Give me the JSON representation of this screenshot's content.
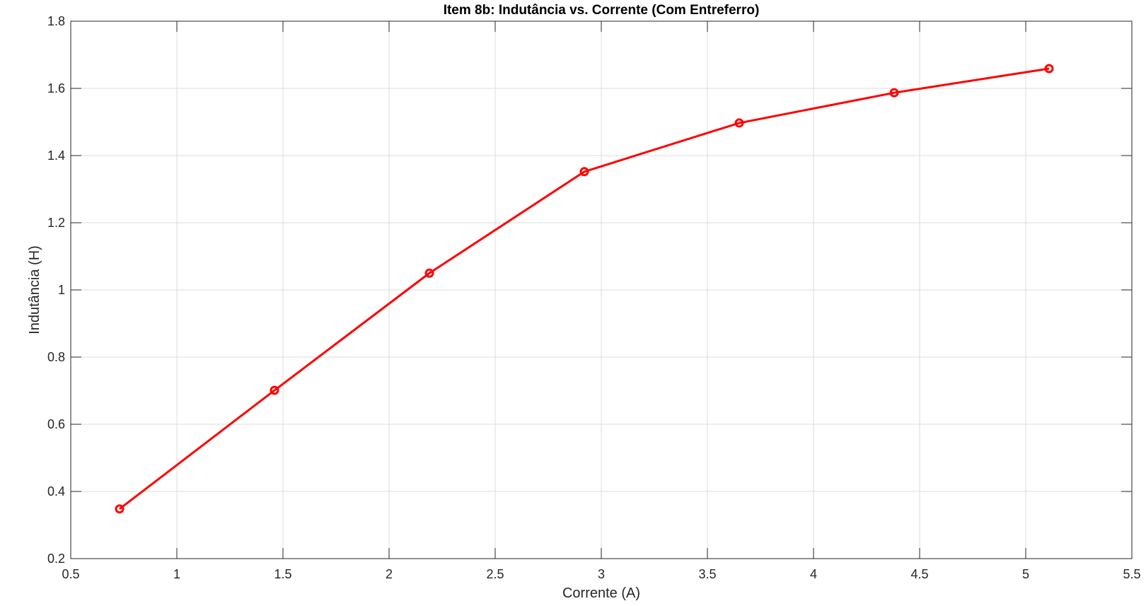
{
  "chart_data": {
    "type": "line",
    "title": "Item 8b: Indutância vs. Corrente (Com Entreferro)",
    "xlabel": "Corrente (A)",
    "ylabel": "Indutância (H)",
    "xlim": [
      0.5,
      5.5
    ],
    "ylim": [
      0.2,
      1.8
    ],
    "xticks": [
      0.5,
      1,
      1.5,
      2,
      2.5,
      3,
      3.5,
      4,
      4.5,
      5,
      5.5
    ],
    "xtick_labels": [
      "0.5",
      "1",
      "1.5",
      "2",
      "2.5",
      "3",
      "3.5",
      "4",
      "4.5",
      "5",
      "5.5"
    ],
    "yticks": [
      0.2,
      0.4,
      0.6,
      0.8,
      1,
      1.2,
      1.4,
      1.6,
      1.8
    ],
    "ytick_labels": [
      "0.2",
      "0.4",
      "0.6",
      "0.8",
      "1",
      "1.2",
      "1.4",
      "1.6",
      "1.8"
    ],
    "grid": true,
    "series": [
      {
        "color": "#ff0000",
        "marker": "circle",
        "x": [
          0.73,
          1.46,
          2.19,
          2.92,
          3.65,
          4.38,
          5.11
        ],
        "y": [
          0.348,
          0.701,
          1.05,
          1.352,
          1.497,
          1.587,
          1.659
        ]
      }
    ]
  }
}
